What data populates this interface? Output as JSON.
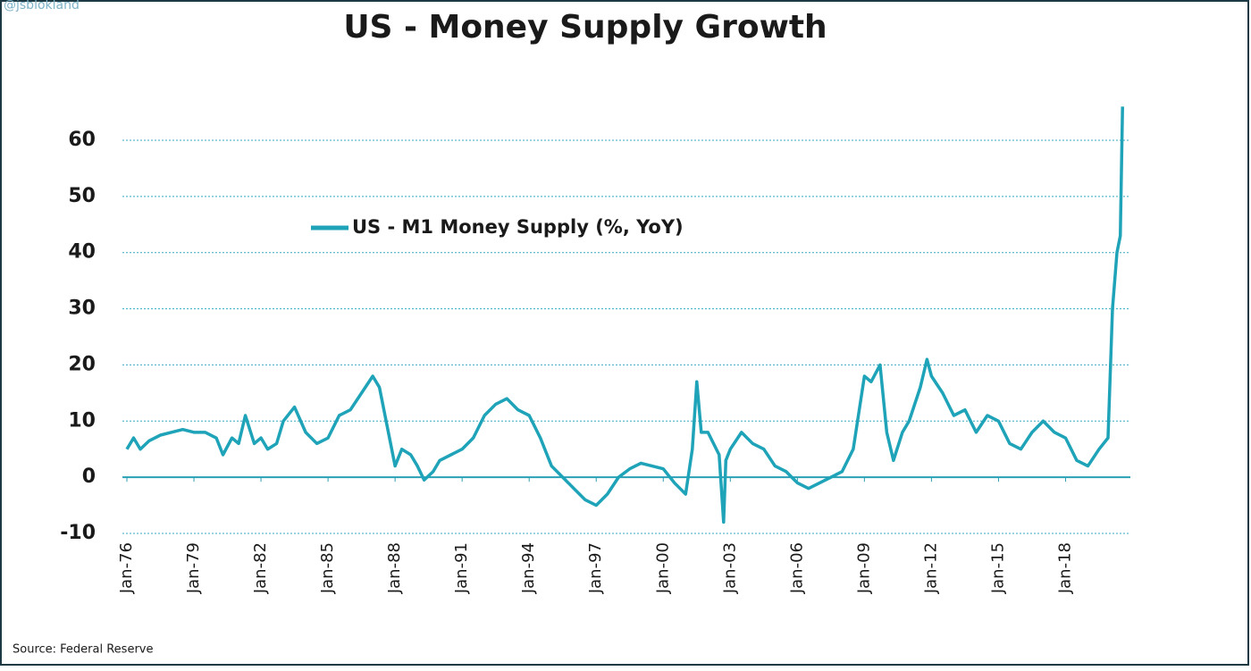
{
  "chart_data": {
    "type": "line",
    "title": "US - Money Supply Growth",
    "watermark": "@jsblokland",
    "source": "Source: Federal Reserve",
    "x": [
      1976.0,
      1976.3,
      1976.6,
      1977.0,
      1977.5,
      1978.0,
      1978.5,
      1979.0,
      1979.5,
      1980.0,
      1980.3,
      1980.7,
      1981.0,
      1981.3,
      1981.7,
      1982.0,
      1982.3,
      1982.7,
      1983.0,
      1983.5,
      1984.0,
      1984.5,
      1985.0,
      1985.5,
      1986.0,
      1986.5,
      1987.0,
      1987.3,
      1987.7,
      1988.0,
      1988.3,
      1988.7,
      1989.0,
      1989.3,
      1989.7,
      1990.0,
      1990.5,
      1991.0,
      1991.5,
      1992.0,
      1992.5,
      1993.0,
      1993.5,
      1994.0,
      1994.5,
      1995.0,
      1995.5,
      1996.0,
      1996.5,
      1997.0,
      1997.5,
      1998.0,
      1998.5,
      1999.0,
      1999.5,
      2000.0,
      2000.5,
      2001.0,
      2001.3,
      2001.5,
      2001.7,
      2002.0,
      2002.5,
      2002.7,
      2002.8,
      2003.0,
      2003.5,
      2004.0,
      2004.5,
      2005.0,
      2005.5,
      2006.0,
      2006.5,
      2007.0,
      2007.5,
      2008.0,
      2008.5,
      2009.0,
      2009.3,
      2009.7,
      2010.0,
      2010.3,
      2010.7,
      2011.0,
      2011.5,
      2011.8,
      2012.0,
      2012.5,
      2013.0,
      2013.5,
      2014.0,
      2014.5,
      2015.0,
      2015.5,
      2016.0,
      2016.5,
      2017.0,
      2017.5,
      2018.0,
      2018.5,
      2019.0,
      2019.5,
      2019.9,
      2020.1,
      2020.3,
      2020.45,
      2020.55
    ],
    "series": [
      {
        "name": "US - M1 Money Supply (%, YoY)",
        "color": "#1fa3b8",
        "values": [
          5,
          7,
          5,
          6.5,
          7.5,
          8,
          8.5,
          8,
          8,
          7,
          4,
          7,
          6,
          11,
          6,
          7,
          5,
          6,
          10,
          12.5,
          8,
          6,
          7,
          11,
          12,
          15,
          18,
          16,
          8,
          2,
          5,
          4,
          2,
          -0.5,
          1,
          3,
          4,
          5,
          7,
          11,
          13,
          14,
          12,
          11,
          7,
          2,
          0,
          -2,
          -4,
          -5,
          -3,
          0,
          1.5,
          2.5,
          2,
          1.5,
          -1,
          -3,
          5,
          17,
          8,
          8,
          4,
          -8,
          3,
          5,
          8,
          6,
          5,
          2,
          1,
          -1,
          -2,
          -1,
          0,
          1,
          5,
          18,
          17,
          20,
          8,
          3,
          8,
          10,
          16,
          21,
          18,
          15,
          11,
          12,
          8,
          11,
          10,
          6,
          5,
          8,
          10,
          8,
          7,
          3,
          2,
          5,
          7,
          30,
          40,
          43,
          66
        ]
      }
    ],
    "xlim": [
      1975.8,
      2020.9
    ],
    "xticks": [
      {
        "value": 1976,
        "label": "Jan-76"
      },
      {
        "value": 1979,
        "label": "Jan-79"
      },
      {
        "value": 1982,
        "label": "Jan-82"
      },
      {
        "value": 1985,
        "label": "Jan-85"
      },
      {
        "value": 1988,
        "label": "Jan-88"
      },
      {
        "value": 1991,
        "label": "Jan-91"
      },
      {
        "value": 1994,
        "label": "Jan-94"
      },
      {
        "value": 1997,
        "label": "Jan-97"
      },
      {
        "value": 2000,
        "label": "Jan-00"
      },
      {
        "value": 2003,
        "label": "Jan-03"
      },
      {
        "value": 2006,
        "label": "Jan-06"
      },
      {
        "value": 2009,
        "label": "Jan-09"
      },
      {
        "value": 2012,
        "label": "Jan-12"
      },
      {
        "value": 2015,
        "label": "Jan-15"
      },
      {
        "value": 2018,
        "label": "Jan-18"
      }
    ],
    "ylim": [
      -10,
      67
    ],
    "yticks": [
      -10,
      0,
      10,
      20,
      30,
      40,
      50,
      60
    ],
    "grid": true
  }
}
